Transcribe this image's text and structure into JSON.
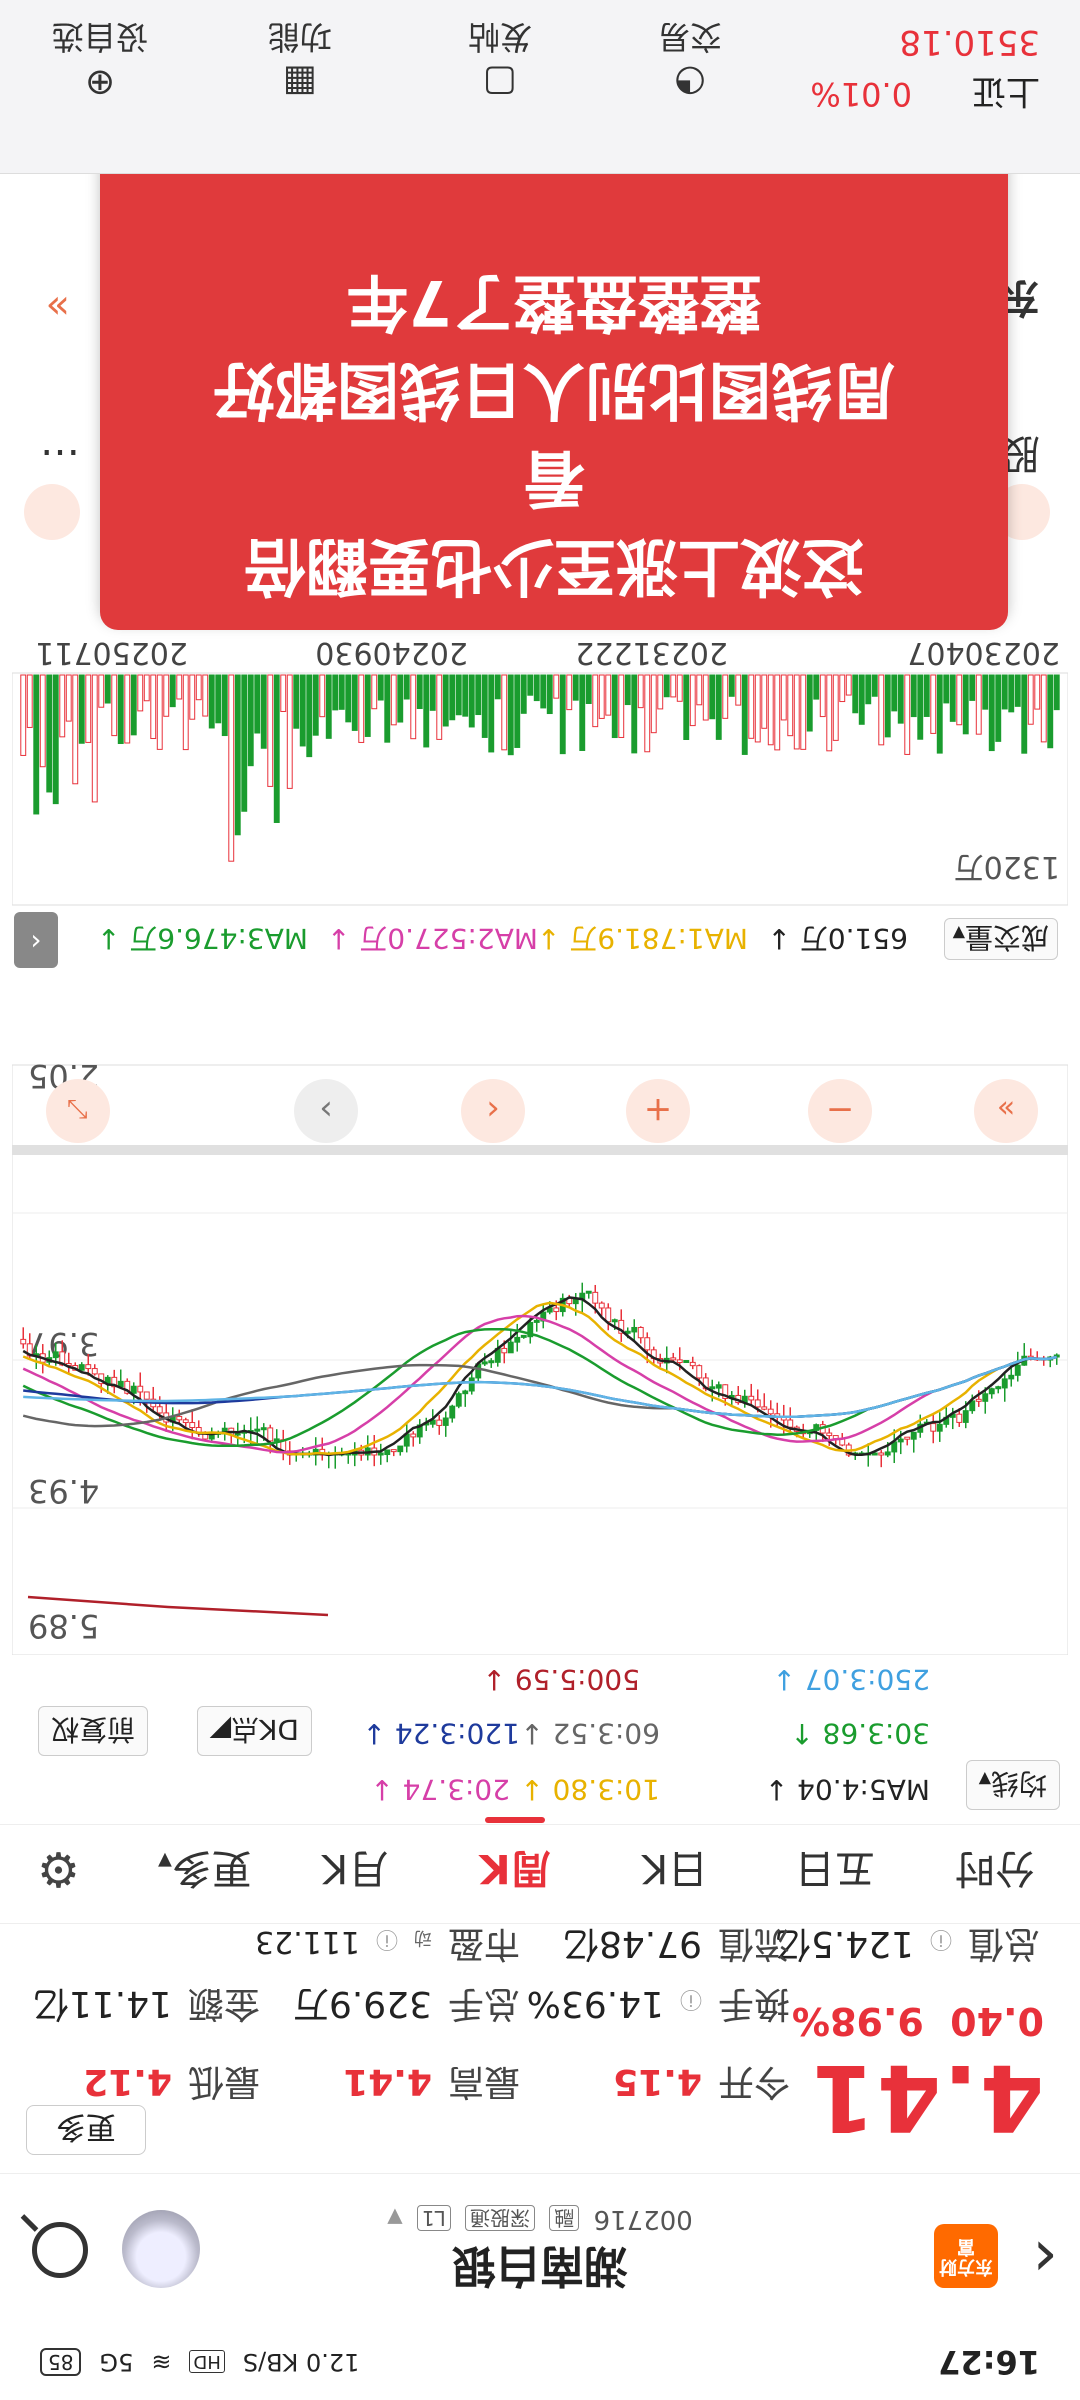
{
  "status": {
    "time": "16:27",
    "net_speed": "12.0 KB/S",
    "hd": "HD",
    "signal": "5G",
    "battery": "85"
  },
  "header": {
    "stock_name": "湖南白银",
    "stock_code": "002716",
    "tags": [
      "融",
      "深股通",
      "L1"
    ],
    "logo_text": "东方财富"
  },
  "quote": {
    "price": "4.41",
    "change_pct": "9.98%",
    "change": "0.40",
    "open_label": "今开",
    "open": "4.15",
    "high_label": "最高",
    "high": "4.41",
    "low_label": "最低",
    "low": "4.12",
    "turnover_rate_label": "换手",
    "turnover_rate": "14.93%",
    "volume_label": "总手",
    "volume": "329.9万",
    "amount_label": "金额",
    "amount": "14.11亿",
    "mcap_label": "总值",
    "mcap": "124.5亿",
    "float_label": "流值",
    "float": "97.48亿",
    "pe_label": "市盈",
    "pe_sup": "动",
    "pe": "111.23",
    "more_label": "更多"
  },
  "tabs": [
    "分时",
    "五日",
    "日K",
    "周K",
    "月K",
    "更多"
  ],
  "active_tab": 3,
  "ma": {
    "switch_label": "均线",
    "ma5": "MA5:4.04",
    "ma10": "10:3.80",
    "ma20": "20:3.74",
    "ma30": "30:3.68",
    "ma60": "60:3.52",
    "ma120": "120:3.24",
    "ma250": "250:3.07",
    "ma500": "500:5.59",
    "dk_label": "DK点",
    "fq_label": "前复权"
  },
  "chart": {
    "price_labels": [
      "5.89",
      "4.93",
      "3.97",
      "2.05"
    ],
    "dates": [
      "20230407",
      "20231222",
      "20240930",
      "20250711"
    ],
    "vol_max_label": "1320万"
  },
  "vol_info": {
    "title": "成交量",
    "vol": "651.0万",
    "ma1": "MA1:781.9万",
    "ma2": "MA2:527.0万",
    "ma3": "MA3:476.6万"
  },
  "promo": {
    "lines": [
      "这波上涨至少也要翻倍",
      "看",
      "周线图比别人日线图都好",
      "整整盘整了7年"
    ]
  },
  "sections": {
    "row1": [
      "股",
      "…"
    ],
    "row2": [
      "东",
      "»"
    ]
  },
  "bottom_nav": {
    "index_name": "上证",
    "index_value": "3510.18",
    "index_change": "0.01%",
    "items": [
      "交易",
      "发帖",
      "功能",
      "设自选"
    ]
  },
  "colors": {
    "up": "#e8313a",
    "down": "#1a9c2e",
    "promo_bg": "#e03a3c"
  }
}
